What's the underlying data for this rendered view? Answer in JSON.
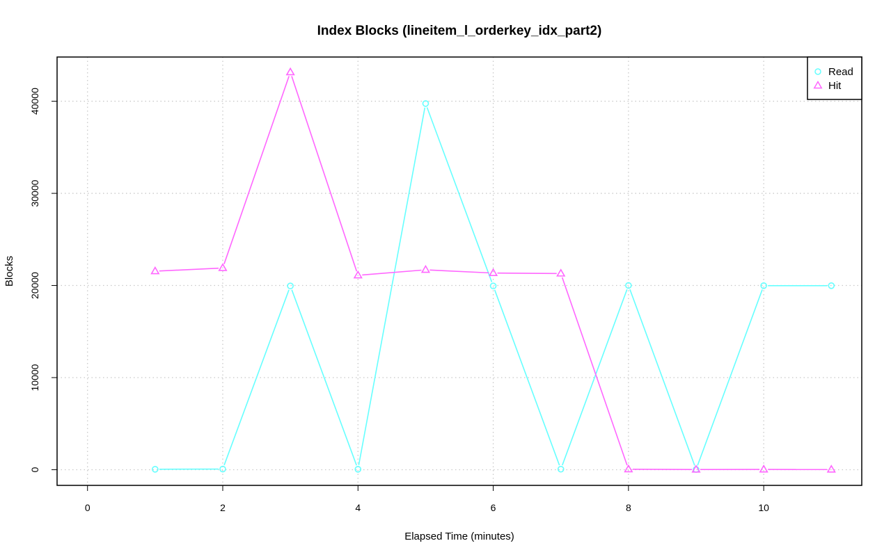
{
  "chart_data": {
    "type": "line",
    "title": "Index Blocks (lineitem_l_orderkey_idx_part2)",
    "xlabel": "Elapsed Time (minutes)",
    "ylabel": "Blocks",
    "xlim": [
      -0.45,
      11.45
    ],
    "ylim": [
      -1700,
      44800
    ],
    "xticks": [
      0,
      2,
      4,
      6,
      8,
      10
    ],
    "yticks": [
      0,
      10000,
      20000,
      30000,
      40000
    ],
    "grid": true,
    "legend_position": "top-right",
    "x": [
      1,
      2,
      3,
      4,
      5,
      6,
      7,
      8,
      9,
      10,
      11
    ],
    "series": [
      {
        "name": "Read",
        "color": "#66ffff",
        "marker": "circle",
        "values": [
          50,
          70,
          19950,
          50,
          39750,
          19950,
          60,
          20000,
          30,
          19980,
          19980
        ]
      },
      {
        "name": "Hit",
        "color": "#ff66ff",
        "marker": "triangle",
        "values": [
          21550,
          21900,
          43150,
          21100,
          21700,
          21350,
          21300,
          50,
          20,
          30,
          20
        ]
      }
    ]
  }
}
